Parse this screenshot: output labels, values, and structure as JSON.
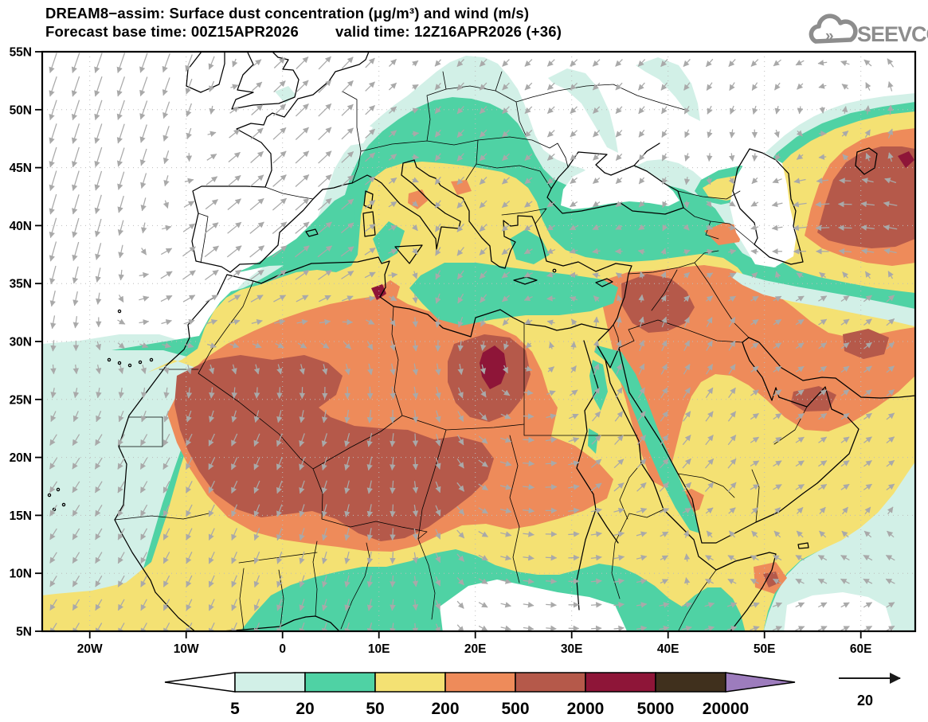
{
  "header": {
    "line1": "DREAM8−assim: Surface dust concentration (μg/m³) and wind (m/s)",
    "base_time": "Forecast base time: 00Z15APR2026",
    "valid_time": "valid time: 12Z16APR2026 (+36)"
  },
  "logo": {
    "text": "SEEVCCC"
  },
  "axes": {
    "lat": [
      "55N",
      "50N",
      "45N",
      "40N",
      "35N",
      "30N",
      "25N",
      "20N",
      "15N",
      "10N",
      "5N"
    ],
    "lon": [
      "20W",
      "10W",
      "0",
      "10E",
      "20E",
      "30E",
      "40E",
      "50E",
      "60E"
    ]
  },
  "colorbar": {
    "labels": [
      "5",
      "20",
      "50",
      "200",
      "500",
      "2000",
      "5000",
      "20000"
    ],
    "segment_colors": [
      "#d2f0e7",
      "#4fd2a4",
      "#f4e173",
      "#ee8b5a",
      "#b5594a",
      "#8e1538",
      "#40301d"
    ],
    "under_color": "#ffffff",
    "over_color": "#9d7cbd",
    "outline_color": "#000000"
  },
  "wind": {
    "reference_label": "20",
    "arrow_color": "#a9a9a9",
    "ref_arrow_color": "#1a1a1a"
  },
  "map": {
    "grid_color": "#bcbcbc",
    "coast_color": "#000000",
    "sea_color": "#ffffff"
  },
  "chart_data": {
    "type": "contour-map",
    "title": "DREAM8−assim: Surface dust concentration (μg/m³) and wind (m/s)",
    "forecast_base_time": "00Z15APR2026",
    "valid_time": "12Z16APR2026",
    "lead_hours": 36,
    "variable": "surface dust concentration",
    "units": "μg/m³",
    "contour_levels": [
      5,
      20,
      50,
      200,
      500,
      2000,
      5000,
      20000
    ],
    "level_colors": [
      "#ffffff",
      "#d2f0e7",
      "#4fd2a4",
      "#f4e173",
      "#ee8b5a",
      "#b5594a",
      "#8e1538",
      "#40301d",
      "#9d7cbd"
    ],
    "domain": {
      "lon": [
        -24.6,
        65.6
      ],
      "lat": [
        5,
        55
      ]
    },
    "lat_ticks_deg": [
      55,
      50,
      45,
      40,
      35,
      30,
      25,
      20,
      15,
      10,
      5
    ],
    "lon_ticks_deg": [
      -20,
      -10,
      0,
      10,
      20,
      30,
      40,
      50,
      60
    ],
    "wind_reference_ms": 20,
    "grid": "dotted, every 10° lon / 5° lat",
    "high_concentration_regions": [
      "Sahara (Mauritania–Mali–Niger–Algeria): 500–2000 cores",
      "NE Libya / W Egypt: local 2000–5000 maximum",
      "Syria–Iraq: 500–2000",
      "East of Caspian Sea: 500–2000",
      "Eastern Arabia (Oman/UAE): 500–2000 patches",
      "N Somalia: small 500–2000 spot"
    ],
    "low_regions": "Atlantic, NW Europe, Black Sea, Caspian, Horn interior below 5 μg/m³"
  }
}
